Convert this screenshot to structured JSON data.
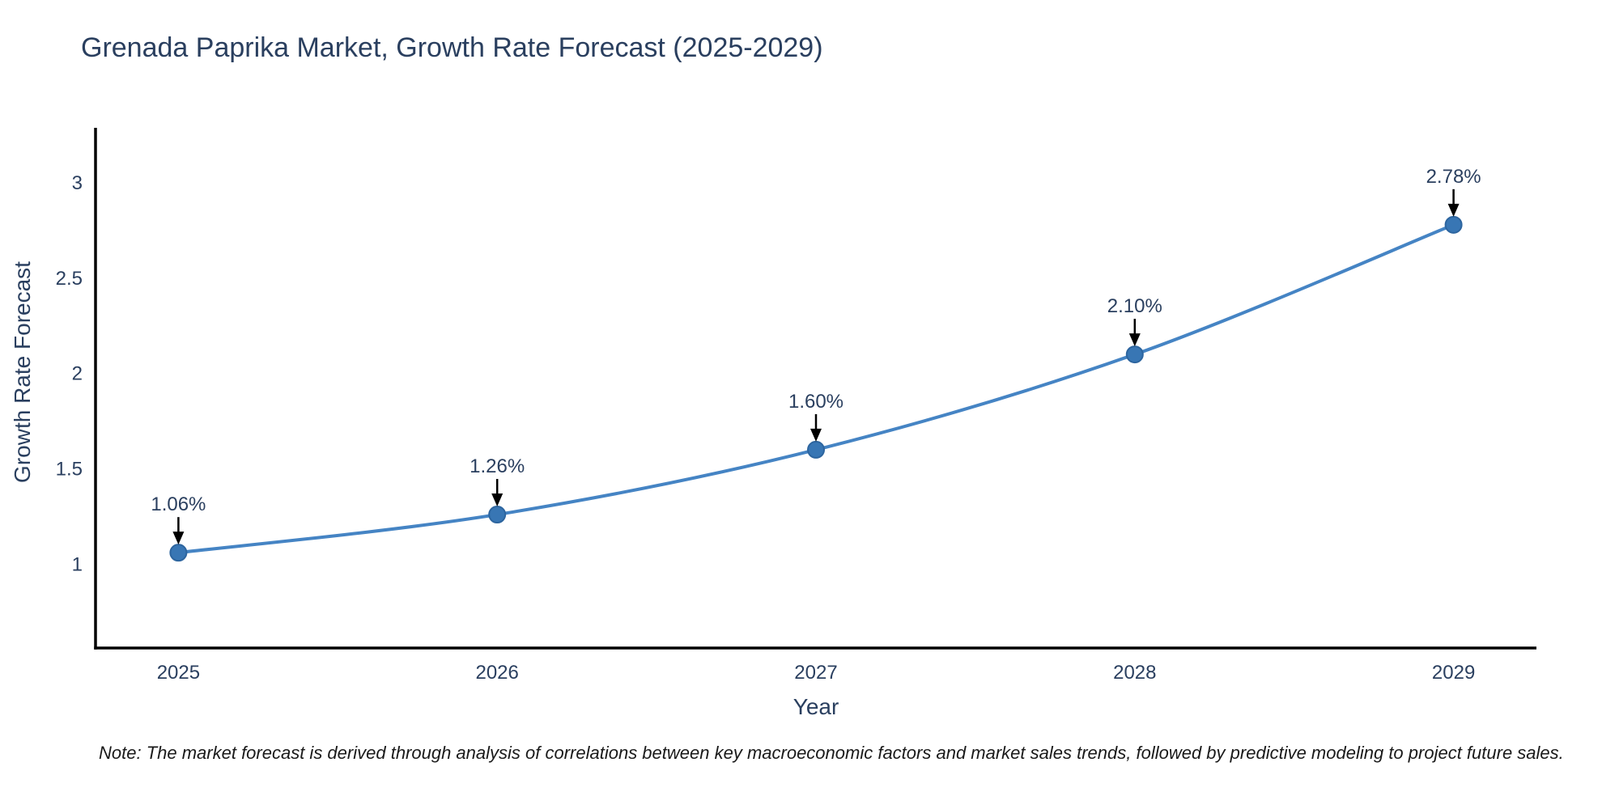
{
  "title": "Grenada Paprika Market, Growth Rate Forecast (2025-2029)",
  "note": "Note: The market forecast is derived through analysis of correlations between key macroeconomic factors and market sales trends, followed by predictive modeling to project future sales.",
  "chart_data": {
    "type": "line",
    "title": "Grenada Paprika Market, Growth Rate Forecast (2025-2029)",
    "xlabel": "Year",
    "ylabel": "Growth Rate Forecast",
    "x": [
      2025,
      2026,
      2027,
      2028,
      2029
    ],
    "xtick_labels": [
      "2025",
      "2026",
      "2027",
      "2028",
      "2029"
    ],
    "series": [
      {
        "name": "Growth Rate Forecast",
        "values": [
          1.06,
          1.26,
          1.6,
          2.1,
          2.78
        ]
      }
    ],
    "point_labels": [
      "1.06%",
      "1.26%",
      "1.60%",
      "2.10%",
      "2.78%"
    ],
    "yticks": [
      1,
      1.5,
      2,
      2.5,
      3
    ],
    "ytick_labels": [
      "1",
      "1.5",
      "2",
      "2.5",
      "3"
    ],
    "xlim": [
      2024.74,
      2029.26
    ],
    "ylim": [
      0.56,
      3.28
    ],
    "grid": false,
    "legend_position": "none",
    "line_shape": "spline",
    "colors": {
      "line": "#4584c4",
      "marker_fill": "#3876b4",
      "marker_edge": "#2d659f",
      "axis_line": "#000000",
      "text": "#2a3f5f",
      "annotation_text": "#2a3f5f",
      "annotation_arrow": "#000000",
      "background": "#ffffff"
    }
  }
}
